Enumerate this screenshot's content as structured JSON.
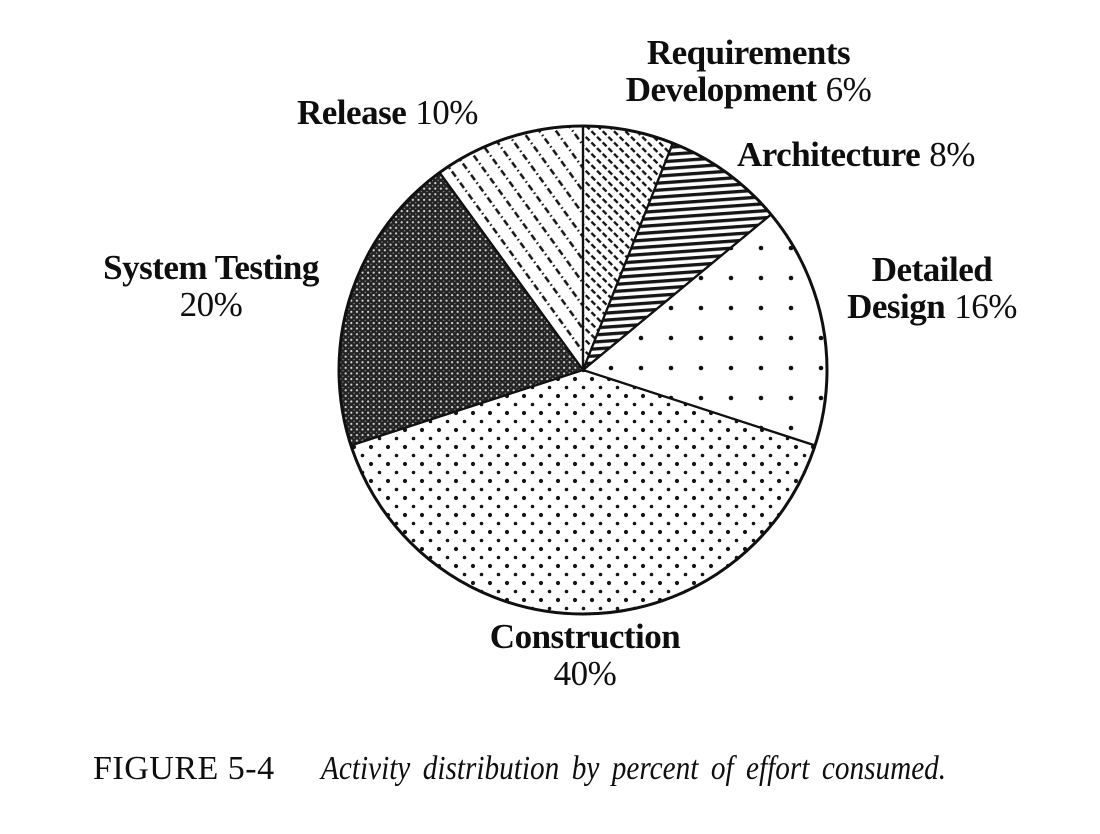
{
  "chart_data": {
    "type": "pie",
    "title": "Activity distribution by percent of effort consumed",
    "direction": "clockwise",
    "start_angle_deg": 0,
    "unit": "%",
    "slices": [
      {
        "label": "Requirements Development",
        "value": 6,
        "pattern": "thin-diagonal-dashed",
        "display": {
          "line1": "Requirements",
          "line2": "Development",
          "pct": "6%"
        }
      },
      {
        "label": "Architecture",
        "value": 8,
        "pattern": "horizontal-stripes",
        "display": {
          "line1": "Architecture",
          "pct": "8%"
        }
      },
      {
        "label": "Detailed Design",
        "value": 16,
        "pattern": "sparse-dot-grid",
        "display": {
          "line1": "Detailed",
          "line2": "Design",
          "pct": "16%"
        }
      },
      {
        "label": "Construction",
        "value": 40,
        "pattern": "dense-stipple-dots",
        "display": {
          "line1": "Construction",
          "pct": "40%"
        }
      },
      {
        "label": "System Testing",
        "value": 20,
        "pattern": "dark-weave",
        "display": {
          "line1": "System Testing",
          "pct": "20%"
        }
      },
      {
        "label": "Release",
        "value": 10,
        "pattern": "wide-diagonal-dashdot",
        "display": {
          "line1": "Release",
          "pct": "10%"
        }
      }
    ],
    "ink_color": "#111111",
    "background_color": "#ffffff"
  },
  "caption": {
    "label": "FIGURE 5-4",
    "text": "Activity distribution by percent of effort consumed."
  }
}
